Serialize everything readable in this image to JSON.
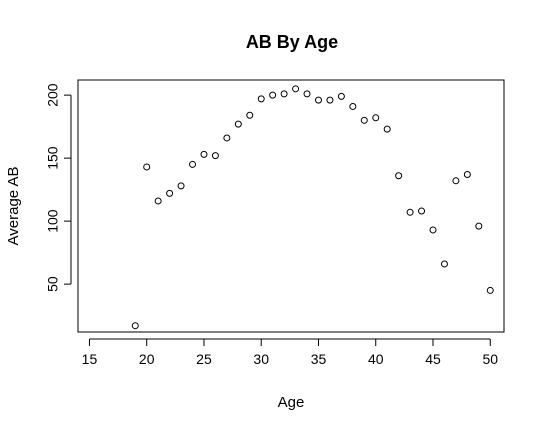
{
  "chart_data": {
    "type": "scatter",
    "title": "AB By Age",
    "xlabel": "Age",
    "ylabel": "Average AB",
    "xlim": [
      14,
      51.2
    ],
    "ylim": [
      12,
      212
    ],
    "xticks": [
      15,
      20,
      25,
      30,
      35,
      40,
      45,
      50
    ],
    "yticks": [
      50,
      100,
      150,
      200
    ],
    "grid": false,
    "marker": "open-circle",
    "color": "#000000",
    "x": [
      19,
      20,
      21,
      22,
      23,
      24,
      25,
      26,
      27,
      28,
      29,
      30,
      31,
      32,
      33,
      34,
      35,
      36,
      37,
      38,
      39,
      40,
      41,
      42,
      43,
      44,
      45,
      46,
      47,
      48,
      49,
      50
    ],
    "y": [
      17,
      143,
      116,
      122,
      128,
      145,
      153,
      152,
      166,
      177,
      184,
      197,
      200,
      201,
      205,
      201,
      196,
      196,
      199,
      191,
      180,
      182,
      173,
      136,
      107,
      108,
      93,
      66,
      132,
      137,
      96,
      45
    ]
  }
}
